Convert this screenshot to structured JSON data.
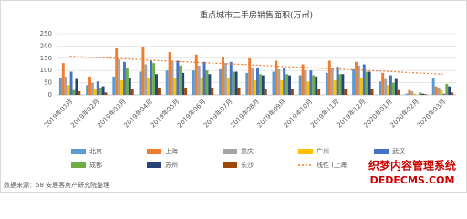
{
  "chart_data": {
    "type": "bar",
    "title": "重点城市二手房销售面积(万㎡)",
    "categories": [
      "2019年01月",
      "2019年02月",
      "2019年03月",
      "2019年04月",
      "2019年05月",
      "2019年06月",
      "2019年07月",
      "2019年08月",
      "2019年09月",
      "2019年10月",
      "2019年11月",
      "2019年12月",
      "2020年01月",
      "2020年02月",
      "2020年03月"
    ],
    "series": [
      {
        "name": "北京",
        "color": "#5b9bd5",
        "values": [
          70,
          40,
          75,
          95,
          100,
          100,
          105,
          90,
          95,
          80,
          90,
          105,
          55,
          5,
          70
        ]
      },
      {
        "name": "上海",
        "color": "#ed7d31",
        "values": [
          130,
          75,
          190,
          195,
          175,
          165,
          155,
          150,
          140,
          125,
          140,
          135,
          90,
          20,
          35
        ]
      },
      {
        "name": "重庆",
        "color": "#a5a5a5",
        "values": [
          75,
          50,
          145,
          125,
          140,
          120,
          130,
          110,
          105,
          100,
          110,
          120,
          65,
          15,
          30
        ]
      },
      {
        "name": "广州",
        "color": "#ffc000",
        "values": [
          40,
          25,
          60,
          70,
          70,
          70,
          70,
          60,
          60,
          55,
          60,
          70,
          40,
          5,
          20
        ]
      },
      {
        "name": "武汉",
        "color": "#4472c4",
        "values": [
          95,
          55,
          135,
          140,
          140,
          135,
          135,
          110,
          110,
          100,
          115,
          125,
          80,
          0,
          5
        ]
      },
      {
        "name": "成都",
        "color": "#70ad47",
        "values": [
          20,
          30,
          110,
          130,
          120,
          100,
          95,
          85,
          85,
          80,
          85,
          95,
          50,
          10,
          45
        ]
      },
      {
        "name": "苏州",
        "color": "#264478",
        "values": [
          65,
          35,
          70,
          85,
          90,
          85,
          95,
          80,
          80,
          75,
          85,
          95,
          65,
          5,
          35
        ]
      },
      {
        "name": "长沙",
        "color": "#9e480e",
        "values": [
          15,
          10,
          25,
          30,
          30,
          30,
          30,
          25,
          25,
          25,
          25,
          25,
          20,
          3,
          10
        ]
      },
      {
        "name": "线性 (上海)",
        "type": "line",
        "dashed": true,
        "color": "#ed7d31",
        "values": [
          158,
          153,
          148,
          142,
          137,
          132,
          127,
          122,
          116,
          111,
          106,
          101,
          96,
          90,
          85
        ]
      }
    ],
    "ylim": [
      0,
      250
    ],
    "yticks": [
      0,
      50,
      100,
      150,
      200,
      250
    ],
    "grid": true,
    "source": "数据来源：58 安居客房产研究院整理"
  },
  "watermark": {
    "line1": "织梦内容管理系统",
    "line2": "DEDECMS.COM"
  }
}
